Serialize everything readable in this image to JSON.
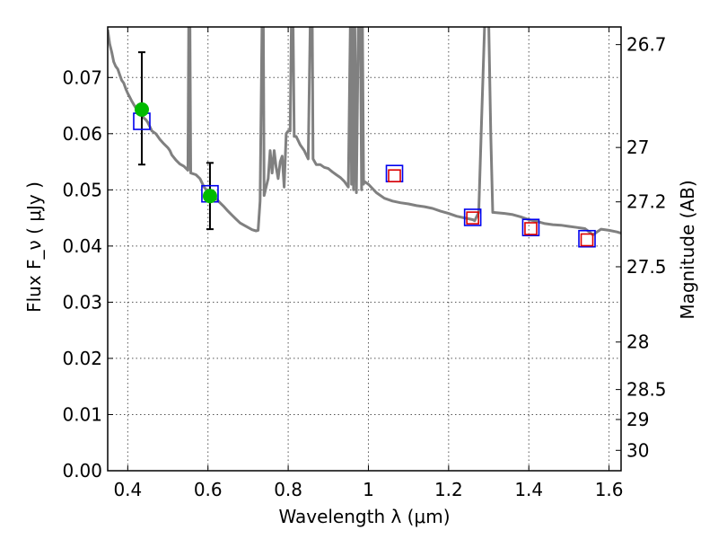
{
  "chart_data": {
    "type": "scatter",
    "xlabel": "Wavelength  λ (μm)",
    "ylabel": "Flux  F_ν  ( μJy )",
    "y2label": "Magnitude (AB)",
    "xlim": [
      0.35,
      1.63
    ],
    "ylim": [
      0.0,
      0.079
    ],
    "grid": true,
    "x_ticks": [
      {
        "value": 0.4,
        "label": "0.4"
      },
      {
        "value": 0.6,
        "label": "0.6"
      },
      {
        "value": 0.8,
        "label": "0.8"
      },
      {
        "value": 1.0,
        "label": "1"
      },
      {
        "value": 1.2,
        "label": "1.2"
      },
      {
        "value": 1.4,
        "label": "1.4"
      },
      {
        "value": 1.6,
        "label": "1.6"
      }
    ],
    "y_ticks": [
      {
        "value": 0.0,
        "label": "0.00"
      },
      {
        "value": 0.01,
        "label": "0.01"
      },
      {
        "value": 0.02,
        "label": "0.02"
      },
      {
        "value": 0.03,
        "label": "0.03"
      },
      {
        "value": 0.04,
        "label": "0.04"
      },
      {
        "value": 0.05,
        "label": "0.05"
      },
      {
        "value": 0.06,
        "label": "0.06"
      },
      {
        "value": 0.07,
        "label": "0.07"
      }
    ],
    "y2_ticks": [
      {
        "value": 26.7,
        "label": "26.7"
      },
      {
        "value": 27.0,
        "label": "27"
      },
      {
        "value": 27.2,
        "label": "27.2"
      },
      {
        "value": 27.5,
        "label": "27.5"
      },
      {
        "value": 28.0,
        "label": "28"
      },
      {
        "value": 28.5,
        "label": "28.5"
      },
      {
        "value": 29.0,
        "label": "29"
      },
      {
        "value": 30.0,
        "label": "30"
      }
    ],
    "model_spectrum": {
      "color": "#808080",
      "points": [
        [
          0.35,
          0.0785
        ],
        [
          0.355,
          0.076
        ],
        [
          0.36,
          0.0745
        ],
        [
          0.365,
          0.0728
        ],
        [
          0.37,
          0.072
        ],
        [
          0.375,
          0.0715
        ],
        [
          0.38,
          0.0705
        ],
        [
          0.385,
          0.0695
        ],
        [
          0.39,
          0.069
        ],
        [
          0.395,
          0.068
        ],
        [
          0.4,
          0.0672
        ],
        [
          0.405,
          0.0665
        ],
        [
          0.41,
          0.0658
        ],
        [
          0.415,
          0.0652
        ],
        [
          0.42,
          0.0646
        ],
        [
          0.425,
          0.0642
        ],
        [
          0.43,
          0.0637
        ],
        [
          0.435,
          0.0633
        ],
        [
          0.44,
          0.0628
        ],
        [
          0.445,
          0.0625
        ],
        [
          0.45,
          0.062
        ],
        [
          0.46,
          0.0605
        ],
        [
          0.47,
          0.06
        ],
        [
          0.48,
          0.059
        ],
        [
          0.49,
          0.0582
        ],
        [
          0.5,
          0.0575
        ],
        [
          0.505,
          0.057
        ],
        [
          0.51,
          0.0562
        ],
        [
          0.52,
          0.0553
        ],
        [
          0.53,
          0.0546
        ],
        [
          0.54,
          0.0542
        ],
        [
          0.55,
          0.0535
        ],
        [
          0.552,
          0.08
        ],
        [
          0.555,
          0.08
        ],
        [
          0.557,
          0.053
        ],
        [
          0.57,
          0.0527
        ],
        [
          0.58,
          0.052
        ],
        [
          0.59,
          0.0505
        ],
        [
          0.6,
          0.0497
        ],
        [
          0.61,
          0.049
        ],
        [
          0.62,
          0.0484
        ],
        [
          0.63,
          0.0477
        ],
        [
          0.64,
          0.047
        ],
        [
          0.65,
          0.0462
        ],
        [
          0.66,
          0.0455
        ],
        [
          0.67,
          0.0448
        ],
        [
          0.68,
          0.0441
        ],
        [
          0.69,
          0.0437
        ],
        [
          0.7,
          0.0433
        ],
        [
          0.71,
          0.0429
        ],
        [
          0.72,
          0.0427
        ],
        [
          0.725,
          0.0428
        ],
        [
          0.73,
          0.048
        ],
        [
          0.735,
          0.08
        ],
        [
          0.738,
          0.08
        ],
        [
          0.74,
          0.049
        ],
        [
          0.745,
          0.0505
        ],
        [
          0.75,
          0.052
        ],
        [
          0.755,
          0.057
        ],
        [
          0.76,
          0.053
        ],
        [
          0.765,
          0.057
        ],
        [
          0.77,
          0.054
        ],
        [
          0.775,
          0.052
        ],
        [
          0.78,
          0.055
        ],
        [
          0.785,
          0.056
        ],
        [
          0.79,
          0.0505
        ],
        [
          0.795,
          0.06
        ],
        [
          0.8,
          0.0605
        ],
        [
          0.805,
          0.0605
        ],
        [
          0.808,
          0.08
        ],
        [
          0.812,
          0.08
        ],
        [
          0.815,
          0.0595
        ],
        [
          0.82,
          0.0595
        ],
        [
          0.83,
          0.058
        ],
        [
          0.84,
          0.057
        ],
        [
          0.85,
          0.0555
        ],
        [
          0.855,
          0.08
        ],
        [
          0.86,
          0.08
        ],
        [
          0.862,
          0.0555
        ],
        [
          0.87,
          0.0545
        ],
        [
          0.88,
          0.0545
        ],
        [
          0.89,
          0.054
        ],
        [
          0.9,
          0.0538
        ],
        [
          0.91,
          0.0532
        ],
        [
          0.92,
          0.0527
        ],
        [
          0.93,
          0.0522
        ],
        [
          0.94,
          0.0515
        ],
        [
          0.945,
          0.051
        ],
        [
          0.95,
          0.0505
        ],
        [
          0.955,
          0.08
        ],
        [
          0.958,
          0.051
        ],
        [
          0.96,
          0.08
        ],
        [
          0.963,
          0.05
        ],
        [
          0.966,
          0.08
        ],
        [
          0.97,
          0.0495
        ],
        [
          0.975,
          0.08
        ],
        [
          0.98,
          0.08
        ],
        [
          0.983,
          0.05
        ],
        [
          0.985,
          0.08
        ],
        [
          0.988,
          0.051
        ],
        [
          0.99,
          0.0515
        ],
        [
          1.0,
          0.051
        ],
        [
          1.02,
          0.0495
        ],
        [
          1.04,
          0.0485
        ],
        [
          1.06,
          0.048
        ],
        [
          1.08,
          0.0477
        ],
        [
          1.1,
          0.0475
        ],
        [
          1.12,
          0.0472
        ],
        [
          1.14,
          0.047
        ],
        [
          1.16,
          0.0467
        ],
        [
          1.18,
          0.0462
        ],
        [
          1.2,
          0.0458
        ],
        [
          1.22,
          0.0453
        ],
        [
          1.24,
          0.045
        ],
        [
          1.26,
          0.0447
        ],
        [
          1.265,
          0.0445
        ],
        [
          1.275,
          0.046
        ],
        [
          1.282,
          0.062
        ],
        [
          1.29,
          0.08
        ],
        [
          1.3,
          0.08
        ],
        [
          1.305,
          0.06
        ],
        [
          1.31,
          0.046
        ],
        [
          1.34,
          0.0458
        ],
        [
          1.36,
          0.0456
        ],
        [
          1.38,
          0.0452
        ],
        [
          1.4,
          0.0447
        ],
        [
          1.42,
          0.0444
        ],
        [
          1.44,
          0.044
        ],
        [
          1.46,
          0.0438
        ],
        [
          1.48,
          0.0437
        ],
        [
          1.5,
          0.0435
        ],
        [
          1.52,
          0.0433
        ],
        [
          1.54,
          0.0431
        ],
        [
          1.56,
          0.042
        ],
        [
          1.57,
          0.0425
        ],
        [
          1.58,
          0.043
        ],
        [
          1.6,
          0.0428
        ],
        [
          1.62,
          0.0425
        ],
        [
          1.63,
          0.0423
        ]
      ]
    },
    "series": [
      {
        "marker": "open-square",
        "color": "#0000ee",
        "points": [
          {
            "x": 0.435,
            "y": 0.0622
          },
          {
            "x": 0.605,
            "y": 0.0493
          },
          {
            "x": 1.065,
            "y": 0.0529
          },
          {
            "x": 1.26,
            "y": 0.0451
          },
          {
            "x": 1.405,
            "y": 0.0433
          },
          {
            "x": 1.545,
            "y": 0.0413
          }
        ]
      },
      {
        "marker": "open-square",
        "color": "#dd0000",
        "points": [
          {
            "x": 1.065,
            "y": 0.0525
          },
          {
            "x": 1.26,
            "y": 0.045
          },
          {
            "x": 1.405,
            "y": 0.0431
          },
          {
            "x": 1.545,
            "y": 0.0411
          }
        ]
      },
      {
        "marker": "filled-circle",
        "color": "#00bb00",
        "points": [
          {
            "x": 0.435,
            "y": 0.0643,
            "yerr_low": 0.0545,
            "yerr_high": 0.0745
          },
          {
            "x": 0.605,
            "y": 0.0489,
            "yerr_low": 0.043,
            "yerr_high": 0.0548
          }
        ]
      }
    ]
  }
}
